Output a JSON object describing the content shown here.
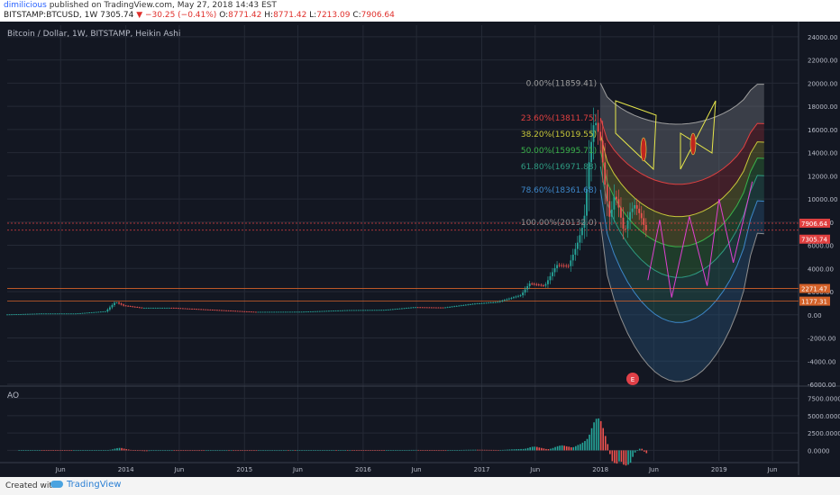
{
  "header": {
    "author": "dimilicious",
    "published": "published on TradingView.com, May 27, 2018 14:43 EST",
    "symbol": "BITSTAMP:BTCUSD, 1W",
    "price": "7305.74",
    "change": "−30.25 (−0.41%)",
    "o_label": "O:",
    "o_value": "8771.42",
    "h_label": "H:",
    "h_value": "8771.42",
    "l_label": "L:",
    "l_value": "7213.09",
    "c_label": "C:",
    "c_value": "7906.64"
  },
  "footer": {
    "created_with": "Created with",
    "brand": "TradingView"
  },
  "colors": {
    "bg": "#131722",
    "grid": "#252a36",
    "up": "#26a69a",
    "down": "#ef5350",
    "magenta": "#e040d0",
    "yellow": "#e6e64a"
  },
  "chart_data": {
    "type": "candlestick",
    "title": "Bitcoin / Dollar, 1W, BITSTAMP, Heikin Ashi",
    "price_axis": {
      "min": -6000,
      "max": 25000,
      "ticks": [
        "24000.00",
        "22000.00",
        "20000.00",
        "18000.00",
        "16000.00",
        "14000.00",
        "12000.00",
        "10000.00",
        "8000.00",
        "6000.00",
        "4000.00",
        "2000.00",
        "0.00",
        "-2000.00",
        "-4000.00",
        "-6000.00"
      ]
    },
    "time_axis": {
      "ticks": [
        {
          "label": "Jun",
          "t": 2013.45
        },
        {
          "label": "2014",
          "t": 2014.0
        },
        {
          "label": "Jun",
          "t": 2014.45
        },
        {
          "label": "2015",
          "t": 2015.0
        },
        {
          "label": "Jun",
          "t": 2015.45
        },
        {
          "label": "2016",
          "t": 2016.0
        },
        {
          "label": "Jun",
          "t": 2016.45
        },
        {
          "label": "2017",
          "t": 2017.0
        },
        {
          "label": "Jun",
          "t": 2017.45
        },
        {
          "label": "2018",
          "t": 2018.0
        },
        {
          "label": "Jun",
          "t": 2018.45
        },
        {
          "label": "2019",
          "t": 2019.0
        },
        {
          "label": "Jun",
          "t": 2019.45
        }
      ]
    },
    "price_series": [
      {
        "t": 2013.0,
        "p": 20
      },
      {
        "t": 2013.3,
        "p": 110
      },
      {
        "t": 2013.6,
        "p": 110
      },
      {
        "t": 2013.85,
        "p": 300
      },
      {
        "t": 2013.93,
        "p": 1100
      },
      {
        "t": 2014.0,
        "p": 800
      },
      {
        "t": 2014.15,
        "p": 600
      },
      {
        "t": 2014.4,
        "p": 600
      },
      {
        "t": 2014.6,
        "p": 500
      },
      {
        "t": 2014.9,
        "p": 350
      },
      {
        "t": 2015.1,
        "p": 250
      },
      {
        "t": 2015.5,
        "p": 260
      },
      {
        "t": 2015.9,
        "p": 400
      },
      {
        "t": 2016.2,
        "p": 420
      },
      {
        "t": 2016.45,
        "p": 650
      },
      {
        "t": 2016.7,
        "p": 620
      },
      {
        "t": 2016.95,
        "p": 950
      },
      {
        "t": 2017.15,
        "p": 1100
      },
      {
        "t": 2017.35,
        "p": 1700
      },
      {
        "t": 2017.42,
        "p": 2700
      },
      {
        "t": 2017.55,
        "p": 2500
      },
      {
        "t": 2017.65,
        "p": 4300
      },
      {
        "t": 2017.75,
        "p": 4200
      },
      {
        "t": 2017.82,
        "p": 6000
      },
      {
        "t": 2017.88,
        "p": 8000
      },
      {
        "t": 2017.93,
        "p": 14000
      },
      {
        "t": 2017.97,
        "p": 17000
      },
      {
        "t": 2018.02,
        "p": 15000
      },
      {
        "t": 2018.06,
        "p": 11000
      },
      {
        "t": 2018.1,
        "p": 8200
      },
      {
        "t": 2018.14,
        "p": 10500
      },
      {
        "t": 2018.18,
        "p": 9000
      },
      {
        "t": 2018.22,
        "p": 7000
      },
      {
        "t": 2018.27,
        "p": 8900
      },
      {
        "t": 2018.31,
        "p": 9500
      },
      {
        "t": 2018.36,
        "p": 8500
      },
      {
        "t": 2018.4,
        "p": 7300
      }
    ],
    "levels": [
      {
        "label": "7906.64",
        "price": 7906.64,
        "color": "#e04040"
      },
      {
        "label": "7305.74",
        "price": 7305.74,
        "color": "#e04040"
      },
      {
        "label": "2271.47",
        "price": 2271.47,
        "color": "#d4622a"
      },
      {
        "label": "1177.31",
        "price": 1177.31,
        "color": "#d4622a"
      }
    ],
    "fib_levels": [
      {
        "label": "0.00%(11859.41)",
        "color": "#9e9e9e",
        "left": [
          2018.0,
          20000
        ],
        "right": [
          2019.38,
          19900
        ]
      },
      {
        "label": "23.60%(13811.75)",
        "color": "#e04040",
        "left": [
          2018.0,
          17000
        ],
        "right": [
          2019.38,
          16500
        ]
      },
      {
        "label": "38.20%(15019.55)",
        "color": "#c8c83a",
        "left": [
          2018.0,
          15600
        ],
        "right": [
          2019.38,
          14900
        ]
      },
      {
        "label": "50.00%(15995.71)",
        "color": "#3ab24a",
        "left": [
          2018.0,
          14200
        ],
        "right": [
          2019.38,
          13500
        ]
      },
      {
        "label": "61.80%(16971.88)",
        "color": "#2e9b82",
        "left": [
          2018.0,
          12800
        ],
        "right": [
          2019.38,
          12000
        ]
      },
      {
        "label": "78.60%(18361.68)",
        "color": "#3d87c9",
        "left": [
          2018.0,
          10800
        ],
        "right": [
          2019.38,
          9800
        ]
      },
      {
        "label": "100.00%(20132.0)",
        "color": "#8e8e8e",
        "left": [
          2018.0,
          8000
        ],
        "right": [
          2019.38,
          7000
        ]
      }
    ],
    "projection_path": [
      [
        2018.4,
        3000
      ],
      [
        2018.5,
        8200
      ],
      [
        2018.6,
        1500
      ],
      [
        2018.75,
        8500
      ],
      [
        2018.9,
        2500
      ],
      [
        2019.0,
        10000
      ],
      [
        2019.12,
        4500
      ],
      [
        2019.28,
        11500
      ]
    ],
    "ao": {
      "name": "AO",
      "ticks": [
        "7500.0000",
        "5000.0000",
        "2500.0000",
        "0.0000"
      ],
      "min": -1500,
      "max": 9000
    }
  }
}
